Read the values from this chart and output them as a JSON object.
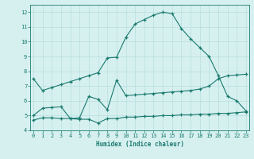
{
  "line1_x": [
    0,
    1,
    2,
    3,
    4,
    5,
    6,
    7,
    8,
    9,
    10,
    11,
    12,
    13,
    14,
    15,
    16,
    17,
    18,
    19,
    20,
    21,
    22,
    23
  ],
  "line1_y": [
    7.5,
    6.7,
    6.9,
    7.1,
    7.3,
    7.5,
    7.7,
    7.9,
    8.9,
    8.95,
    10.3,
    11.2,
    11.5,
    11.8,
    12.0,
    11.9,
    10.9,
    10.2,
    9.6,
    9.0,
    7.7,
    6.3,
    6.0,
    5.3
  ],
  "line2_x": [
    0,
    1,
    2,
    3,
    4,
    5,
    6,
    7,
    8,
    9,
    10,
    11,
    12,
    13,
    14,
    15,
    16,
    17,
    18,
    19,
    20,
    21,
    22,
    23
  ],
  "line2_y": [
    5.0,
    5.5,
    5.55,
    5.6,
    4.8,
    4.85,
    6.3,
    6.1,
    5.4,
    7.4,
    6.35,
    6.4,
    6.45,
    6.5,
    6.55,
    6.6,
    6.65,
    6.7,
    6.8,
    7.0,
    7.5,
    7.7,
    7.75,
    7.8
  ],
  "line3_x": [
    0,
    1,
    2,
    3,
    4,
    5,
    6,
    7,
    8,
    9,
    10,
    11,
    12,
    13,
    14,
    15,
    16,
    17,
    18,
    19,
    20,
    21,
    22,
    23
  ],
  "line3_y": [
    4.7,
    4.85,
    4.85,
    4.8,
    4.8,
    4.75,
    4.75,
    4.5,
    4.8,
    4.8,
    4.9,
    4.9,
    4.95,
    4.95,
    5.0,
    5.0,
    5.05,
    5.05,
    5.1,
    5.1,
    5.15,
    5.15,
    5.2,
    5.25
  ],
  "line_color": "#1a7a6e",
  "bg_color": "#d6f0f0",
  "grid_color": "#b8dede",
  "xlabel": "Humidex (Indice chaleur)",
  "ylim": [
    4,
    12.5
  ],
  "xlim": [
    -0.3,
    23.3
  ],
  "yticks": [
    4,
    5,
    6,
    7,
    8,
    9,
    10,
    11,
    12
  ],
  "xticks": [
    0,
    1,
    2,
    3,
    4,
    5,
    6,
    7,
    8,
    9,
    10,
    11,
    12,
    13,
    14,
    15,
    16,
    17,
    18,
    19,
    20,
    21,
    22,
    23
  ]
}
